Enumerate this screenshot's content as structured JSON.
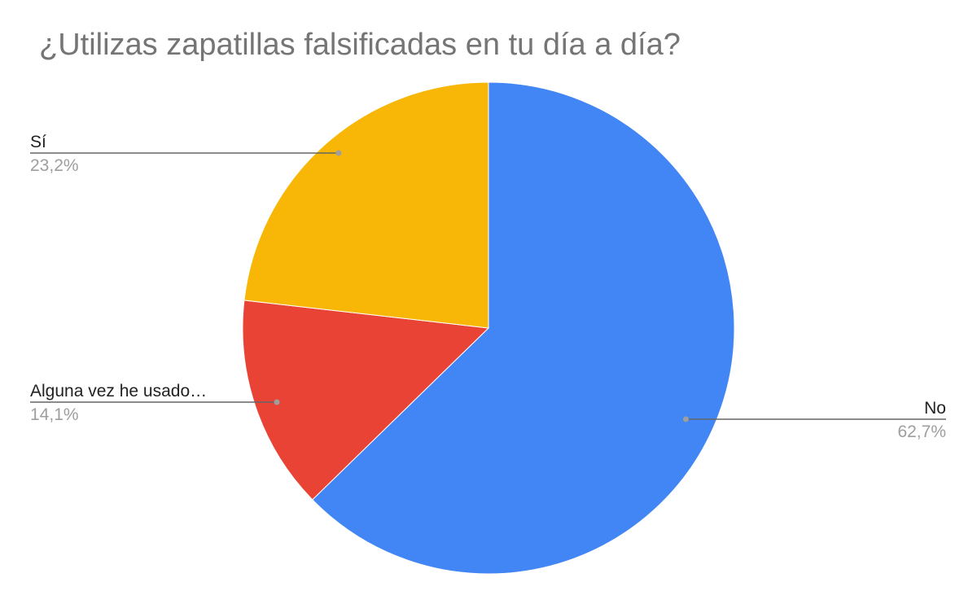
{
  "chart_data": {
    "type": "pie",
    "title": "¿Utilizas zapatillas falsificadas en tu día a día?",
    "slices": [
      {
        "label": "No",
        "value": 62.7,
        "display": "62,7%",
        "color": "#4285F4"
      },
      {
        "label": "Alguna vez he usado…",
        "value": 14.1,
        "display": "14,1%",
        "color": "#E94335"
      },
      {
        "label": "Sí",
        "value": 23.2,
        "display": "23,2%",
        "color": "#F8B706"
      }
    ],
    "start_angle": "12 o'clock",
    "direction": "clockwise",
    "legend": "none (labels beside slices)"
  }
}
